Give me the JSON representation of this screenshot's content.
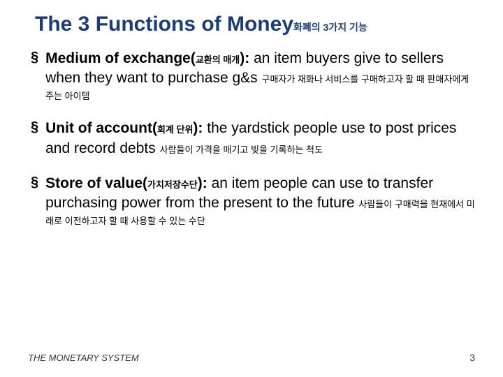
{
  "title": {
    "main": "The 3 Functions of Money",
    "sub": "화폐의 3가지 기능",
    "color": "#1a3c7a",
    "fontsize_main": 30,
    "fontsize_sub": 14
  },
  "bullet_marker": "§",
  "items": [
    {
      "term": "Medium of exchange(",
      "term_sub": "교환의 매개",
      "term_close": "):",
      "def": "  an item buyers give to sellers when they want to purchase g&s ",
      "def_sub": "구매자가 재화나 서비스를 구매하고자 할 때 판매자에게 주는 아이템"
    },
    {
      "term": "Unit of account(",
      "term_sub": "회계 단위",
      "term_close": "):",
      "def": "  the yardstick people use to post prices and record debts  ",
      "def_sub": "사람들이 가격을 매기고 빚을 기록하는 척도"
    },
    {
      "term": "Store of value(",
      "term_sub": "가치저장수단",
      "term_close": "):",
      "def": "  an item people can use to transfer purchasing power from the present to the future ",
      "def_sub": "사람들이 구매력을 현재에서 미래로 이전하고자 할 때 사용할 수 있는 수단"
    }
  ],
  "footer": "THE MONETARY SYSTEM",
  "page_number": "3",
  "colors": {
    "title": "#1a3c7a",
    "text": "#000000",
    "background": "#ffffff",
    "footer": "#333333"
  },
  "fonts": {
    "body_size": 21,
    "sub_size": 13,
    "footer_size": 13,
    "family": "Arial"
  }
}
